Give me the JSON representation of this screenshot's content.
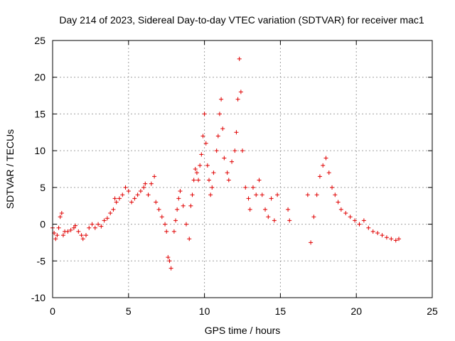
{
  "chart_data": {
    "type": "scatter",
    "title": "Day 214 of 2023, Sidereal Day-to-day VTEC variation (SDTVAR) for receiver mac1",
    "xlabel": "GPS time / hours",
    "ylabel": "SDTVAR / TECUs",
    "xlim": [
      0,
      25
    ],
    "ylim": [
      -10,
      25
    ],
    "xticks": [
      0,
      5,
      10,
      15,
      20,
      25
    ],
    "yticks": [
      -10,
      -5,
      0,
      5,
      10,
      15,
      20,
      25
    ],
    "grid": true,
    "marker": "+",
    "color": "#e00000",
    "series": [
      {
        "name": "SDTVAR",
        "points": [
          [
            0.0,
            -0.5
          ],
          [
            0.1,
            -1.2
          ],
          [
            0.2,
            -2.0
          ],
          [
            0.3,
            -1.5
          ],
          [
            0.4,
            -0.5
          ],
          [
            0.5,
            1.0
          ],
          [
            0.6,
            1.5
          ],
          [
            0.7,
            -1.5
          ],
          [
            0.8,
            -1.0
          ],
          [
            1.0,
            -1.0
          ],
          [
            1.2,
            -0.8
          ],
          [
            1.4,
            -0.5
          ],
          [
            1.5,
            -0.2
          ],
          [
            1.7,
            -1.0
          ],
          [
            1.9,
            -1.5
          ],
          [
            2.0,
            -2.0
          ],
          [
            2.2,
            -1.5
          ],
          [
            2.4,
            -0.5
          ],
          [
            2.6,
            0.0
          ],
          [
            2.8,
            -0.5
          ],
          [
            3.0,
            0.0
          ],
          [
            3.2,
            -0.3
          ],
          [
            3.4,
            0.5
          ],
          [
            3.6,
            0.8
          ],
          [
            3.8,
            1.5
          ],
          [
            4.0,
            2.0
          ],
          [
            4.1,
            3.5
          ],
          [
            4.2,
            3.0
          ],
          [
            4.4,
            3.5
          ],
          [
            4.6,
            4.0
          ],
          [
            4.8,
            5.0
          ],
          [
            5.0,
            4.5
          ],
          [
            5.2,
            3.0
          ],
          [
            5.4,
            3.5
          ],
          [
            5.6,
            4.0
          ],
          [
            5.8,
            4.5
          ],
          [
            6.0,
            5.0
          ],
          [
            6.1,
            5.5
          ],
          [
            6.3,
            4.0
          ],
          [
            6.5,
            5.5
          ],
          [
            6.7,
            6.5
          ],
          [
            6.8,
            3.0
          ],
          [
            7.0,
            2.0
          ],
          [
            7.2,
            1.0
          ],
          [
            7.4,
            0.0
          ],
          [
            7.5,
            -1.0
          ],
          [
            7.6,
            -4.5
          ],
          [
            7.7,
            -5.0
          ],
          [
            7.8,
            -6.0
          ],
          [
            8.0,
            -1.0
          ],
          [
            8.1,
            0.5
          ],
          [
            8.2,
            2.0
          ],
          [
            8.3,
            3.5
          ],
          [
            8.4,
            4.5
          ],
          [
            8.6,
            2.5
          ],
          [
            8.8,
            0.0
          ],
          [
            9.0,
            -2.0
          ],
          [
            9.1,
            2.5
          ],
          [
            9.2,
            4.0
          ],
          [
            9.3,
            6.0
          ],
          [
            9.4,
            7.5
          ],
          [
            9.5,
            7.0
          ],
          [
            9.6,
            6.0
          ],
          [
            9.7,
            8.0
          ],
          [
            9.8,
            9.5
          ],
          [
            9.9,
            12.0
          ],
          [
            10.0,
            15.0
          ],
          [
            10.1,
            11.0
          ],
          [
            10.2,
            8.0
          ],
          [
            10.3,
            6.0
          ],
          [
            10.4,
            4.0
          ],
          [
            10.5,
            5.0
          ],
          [
            10.6,
            7.0
          ],
          [
            10.8,
            10.0
          ],
          [
            10.9,
            12.0
          ],
          [
            11.0,
            15.0
          ],
          [
            11.1,
            17.0
          ],
          [
            11.2,
            13.0
          ],
          [
            11.3,
            9.0
          ],
          [
            11.5,
            7.0
          ],
          [
            11.6,
            6.0
          ],
          [
            11.8,
            8.5
          ],
          [
            12.0,
            10.0
          ],
          [
            12.1,
            12.5
          ],
          [
            12.2,
            17.0
          ],
          [
            12.3,
            22.5
          ],
          [
            12.4,
            18.0
          ],
          [
            12.5,
            10.0
          ],
          [
            12.7,
            5.0
          ],
          [
            12.9,
            3.5
          ],
          [
            13.0,
            2.0
          ],
          [
            13.2,
            5.0
          ],
          [
            13.4,
            4.0
          ],
          [
            13.6,
            6.0
          ],
          [
            13.8,
            4.0
          ],
          [
            14.0,
            2.0
          ],
          [
            14.2,
            1.0
          ],
          [
            14.4,
            3.5
          ],
          [
            14.6,
            0.5
          ],
          [
            14.8,
            4.0
          ],
          [
            15.5,
            2.0
          ],
          [
            15.6,
            0.5
          ],
          [
            16.8,
            4.0
          ],
          [
            17.0,
            -2.5
          ],
          [
            17.2,
            1.0
          ],
          [
            17.4,
            4.0
          ],
          [
            17.6,
            6.5
          ],
          [
            17.8,
            8.0
          ],
          [
            18.0,
            9.0
          ],
          [
            18.2,
            7.0
          ],
          [
            18.4,
            5.0
          ],
          [
            18.6,
            4.0
          ],
          [
            18.8,
            3.0
          ],
          [
            19.0,
            2.0
          ],
          [
            19.3,
            1.5
          ],
          [
            19.6,
            1.0
          ],
          [
            19.9,
            0.5
          ],
          [
            20.2,
            0.0
          ],
          [
            20.5,
            0.5
          ],
          [
            20.8,
            -0.5
          ],
          [
            21.1,
            -1.0
          ],
          [
            21.4,
            -1.2
          ],
          [
            21.7,
            -1.5
          ],
          [
            22.0,
            -1.8
          ],
          [
            22.3,
            -2.0
          ],
          [
            22.6,
            -2.2
          ],
          [
            22.8,
            -2.0
          ]
        ]
      }
    ]
  }
}
